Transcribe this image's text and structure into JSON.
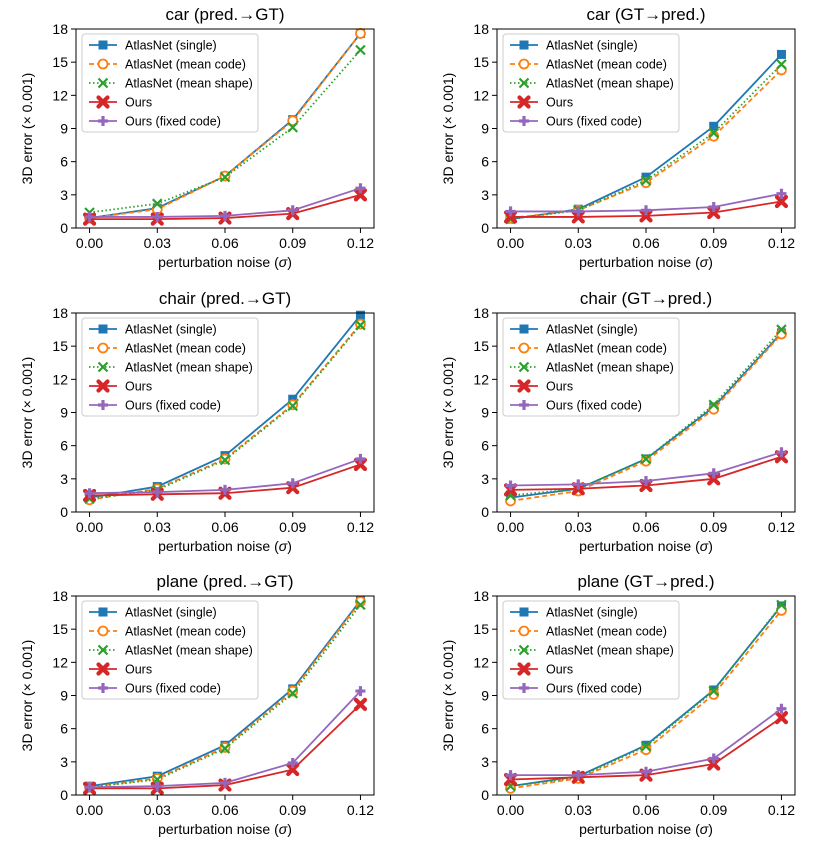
{
  "figure": {
    "x_label": "perturbation noise (",
    "x_label_sigma": "σ",
    "x_label_close": ")",
    "y_label": "3D error (× 0.001)"
  },
  "chart_data": [
    {
      "type": "line",
      "title": "car (pred.→GT)",
      "x": [
        0.0,
        0.03,
        0.06,
        0.09,
        0.12
      ],
      "x_ticks": [
        "0.00",
        "0.03",
        "0.06",
        "0.09",
        "0.12"
      ],
      "y_ticks": [
        "0",
        "3",
        "6",
        "9",
        "12",
        "15",
        "18"
      ],
      "ylim": [
        0,
        18
      ],
      "legend_position": "top-left",
      "series": [
        {
          "name": "AtlasNet (single)",
          "color": "#1f77b4",
          "dash": "solid",
          "marker": "square",
          "values": [
            0.9,
            1.8,
            4.7,
            9.8,
            17.6
          ]
        },
        {
          "name": "AtlasNet (mean code)",
          "color": "#ff7f0e",
          "dash": "dashed",
          "marker": "circle",
          "values": [
            0.9,
            1.7,
            4.7,
            9.7,
            17.6
          ]
        },
        {
          "name": "AtlasNet (mean shape)",
          "color": "#2ca02c",
          "dash": "dotted",
          "marker": "x",
          "values": [
            1.4,
            2.2,
            4.6,
            9.1,
            16.1
          ]
        },
        {
          "name": "Ours",
          "color": "#d62728",
          "dash": "solid",
          "marker": "xbold",
          "values": [
            0.8,
            0.8,
            0.9,
            1.3,
            3.0
          ]
        },
        {
          "name": "Ours (fixed code)",
          "color": "#9467bd",
          "dash": "solid",
          "marker": "plus",
          "values": [
            1.0,
            1.0,
            1.1,
            1.6,
            3.6
          ]
        }
      ]
    },
    {
      "type": "line",
      "title": "car (GT→pred.)",
      "x": [
        0.0,
        0.03,
        0.06,
        0.09,
        0.12
      ],
      "x_ticks": [
        "0.00",
        "0.03",
        "0.06",
        "0.09",
        "0.12"
      ],
      "y_ticks": [
        "0",
        "3",
        "6",
        "9",
        "12",
        "15",
        "18"
      ],
      "ylim": [
        0,
        18
      ],
      "legend_position": "top-left",
      "series": [
        {
          "name": "AtlasNet (single)",
          "color": "#1f77b4",
          "dash": "solid",
          "marker": "square",
          "values": [
            0.8,
            1.7,
            4.6,
            9.2,
            15.7
          ]
        },
        {
          "name": "AtlasNet (mean code)",
          "color": "#ff7f0e",
          "dash": "dashed",
          "marker": "circle",
          "values": [
            0.9,
            1.6,
            4.1,
            8.3,
            14.3
          ]
        },
        {
          "name": "AtlasNet (mean shape)",
          "color": "#2ca02c",
          "dash": "dotted",
          "marker": "x",
          "values": [
            0.8,
            1.6,
            4.3,
            8.6,
            14.8
          ]
        },
        {
          "name": "Ours",
          "color": "#d62728",
          "dash": "solid",
          "marker": "xbold",
          "values": [
            1.0,
            1.0,
            1.1,
            1.4,
            2.4
          ]
        },
        {
          "name": "Ours (fixed code)",
          "color": "#9467bd",
          "dash": "solid",
          "marker": "plus",
          "values": [
            1.5,
            1.5,
            1.6,
            1.9,
            3.1
          ]
        }
      ]
    },
    {
      "type": "line",
      "title": "chair (pred.→GT)",
      "x": [
        0.0,
        0.03,
        0.06,
        0.09,
        0.12
      ],
      "x_ticks": [
        "0.00",
        "0.03",
        "0.06",
        "0.09",
        "0.12"
      ],
      "y_ticks": [
        "0",
        "3",
        "6",
        "9",
        "12",
        "15",
        "18"
      ],
      "ylim": [
        0,
        18
      ],
      "legend_position": "top-left",
      "series": [
        {
          "name": "AtlasNet (single)",
          "color": "#1f77b4",
          "dash": "solid",
          "marker": "square",
          "values": [
            1.3,
            2.3,
            5.1,
            10.2,
            17.8
          ]
        },
        {
          "name": "AtlasNet (mean code)",
          "color": "#ff7f0e",
          "dash": "dashed",
          "marker": "circle",
          "values": [
            1.1,
            2.1,
            4.8,
            9.7,
            17.0
          ]
        },
        {
          "name": "AtlasNet (mean shape)",
          "color": "#2ca02c",
          "dash": "dotted",
          "marker": "x",
          "values": [
            1.2,
            2.0,
            4.7,
            9.6,
            16.9
          ]
        },
        {
          "name": "Ours",
          "color": "#d62728",
          "dash": "solid",
          "marker": "xbold",
          "values": [
            1.5,
            1.6,
            1.7,
            2.2,
            4.3
          ]
        },
        {
          "name": "Ours (fixed code)",
          "color": "#9467bd",
          "dash": "solid",
          "marker": "plus",
          "values": [
            1.7,
            1.8,
            2.0,
            2.6,
            4.8
          ]
        }
      ]
    },
    {
      "type": "line",
      "title": "chair (GT→pred.)",
      "x": [
        0.0,
        0.03,
        0.06,
        0.09,
        0.12
      ],
      "x_ticks": [
        "0.00",
        "0.03",
        "0.06",
        "0.09",
        "0.12"
      ],
      "y_ticks": [
        "0",
        "3",
        "6",
        "9",
        "12",
        "15",
        "18"
      ],
      "ylim": [
        0,
        18
      ],
      "legend_position": "top-left",
      "series": [
        {
          "name": "AtlasNet (single)",
          "color": "#1f77b4",
          "dash": "solid",
          "marker": "square",
          "values": [
            1.3,
            2.1,
            4.8,
            9.5,
            16.2
          ]
        },
        {
          "name": "AtlasNet (mean code)",
          "color": "#ff7f0e",
          "dash": "dashed",
          "marker": "circle",
          "values": [
            1.0,
            1.9,
            4.6,
            9.3,
            16.1
          ]
        },
        {
          "name": "AtlasNet (mean shape)",
          "color": "#2ca02c",
          "dash": "dotted",
          "marker": "x",
          "values": [
            1.5,
            2.1,
            4.8,
            9.7,
            16.5
          ]
        },
        {
          "name": "Ours",
          "color": "#d62728",
          "dash": "solid",
          "marker": "xbold",
          "values": [
            2.0,
            2.1,
            2.4,
            3.0,
            5.0
          ]
        },
        {
          "name": "Ours (fixed code)",
          "color": "#9467bd",
          "dash": "solid",
          "marker": "plus",
          "values": [
            2.4,
            2.5,
            2.8,
            3.5,
            5.4
          ]
        }
      ]
    },
    {
      "type": "line",
      "title": "plane (pred.→GT)",
      "x": [
        0.0,
        0.03,
        0.06,
        0.09,
        0.12
      ],
      "x_ticks": [
        "0.00",
        "0.03",
        "0.06",
        "0.09",
        "0.12"
      ],
      "y_ticks": [
        "0",
        "3",
        "6",
        "9",
        "12",
        "15",
        "18"
      ],
      "ylim": [
        0,
        18
      ],
      "legend_position": "top-left",
      "series": [
        {
          "name": "AtlasNet (single)",
          "color": "#1f77b4",
          "dash": "solid",
          "marker": "square",
          "values": [
            0.8,
            1.7,
            4.5,
            9.6,
            17.6
          ]
        },
        {
          "name": "AtlasNet (mean code)",
          "color": "#ff7f0e",
          "dash": "dashed",
          "marker": "circle",
          "values": [
            0.7,
            1.5,
            4.3,
            9.4,
            17.5
          ]
        },
        {
          "name": "AtlasNet (mean shape)",
          "color": "#2ca02c",
          "dash": "dotted",
          "marker": "x",
          "values": [
            0.7,
            1.4,
            4.2,
            9.2,
            17.2
          ]
        },
        {
          "name": "Ours",
          "color": "#d62728",
          "dash": "solid",
          "marker": "xbold",
          "values": [
            0.6,
            0.6,
            0.9,
            2.3,
            8.2
          ]
        },
        {
          "name": "Ours (fixed code)",
          "color": "#9467bd",
          "dash": "solid",
          "marker": "plus",
          "values": [
            0.7,
            0.8,
            1.1,
            2.9,
            9.4
          ]
        }
      ]
    },
    {
      "type": "line",
      "title": "plane (GT→pred.)",
      "x": [
        0.0,
        0.03,
        0.06,
        0.09,
        0.12
      ],
      "x_ticks": [
        "0.00",
        "0.03",
        "0.06",
        "0.09",
        "0.12"
      ],
      "y_ticks": [
        "0",
        "3",
        "6",
        "9",
        "12",
        "15",
        "18"
      ],
      "ylim": [
        0,
        18
      ],
      "legend_position": "top-left",
      "series": [
        {
          "name": "AtlasNet (single)",
          "color": "#1f77b4",
          "dash": "solid",
          "marker": "square",
          "values": [
            0.8,
            1.7,
            4.5,
            9.5,
            17.1
          ]
        },
        {
          "name": "AtlasNet (mean code)",
          "color": "#ff7f0e",
          "dash": "dashed",
          "marker": "circle",
          "values": [
            0.6,
            1.5,
            4.1,
            9.1,
            16.7
          ]
        },
        {
          "name": "AtlasNet (mean shape)",
          "color": "#2ca02c",
          "dash": "dotted",
          "marker": "x",
          "values": [
            0.8,
            1.6,
            4.4,
            9.4,
            17.2
          ]
        },
        {
          "name": "Ours",
          "color": "#d62728",
          "dash": "solid",
          "marker": "xbold",
          "values": [
            1.4,
            1.6,
            1.8,
            2.8,
            7.0
          ]
        },
        {
          "name": "Ours (fixed code)",
          "color": "#9467bd",
          "dash": "solid",
          "marker": "plus",
          "values": [
            1.8,
            1.8,
            2.1,
            3.3,
            7.8
          ]
        }
      ]
    }
  ]
}
